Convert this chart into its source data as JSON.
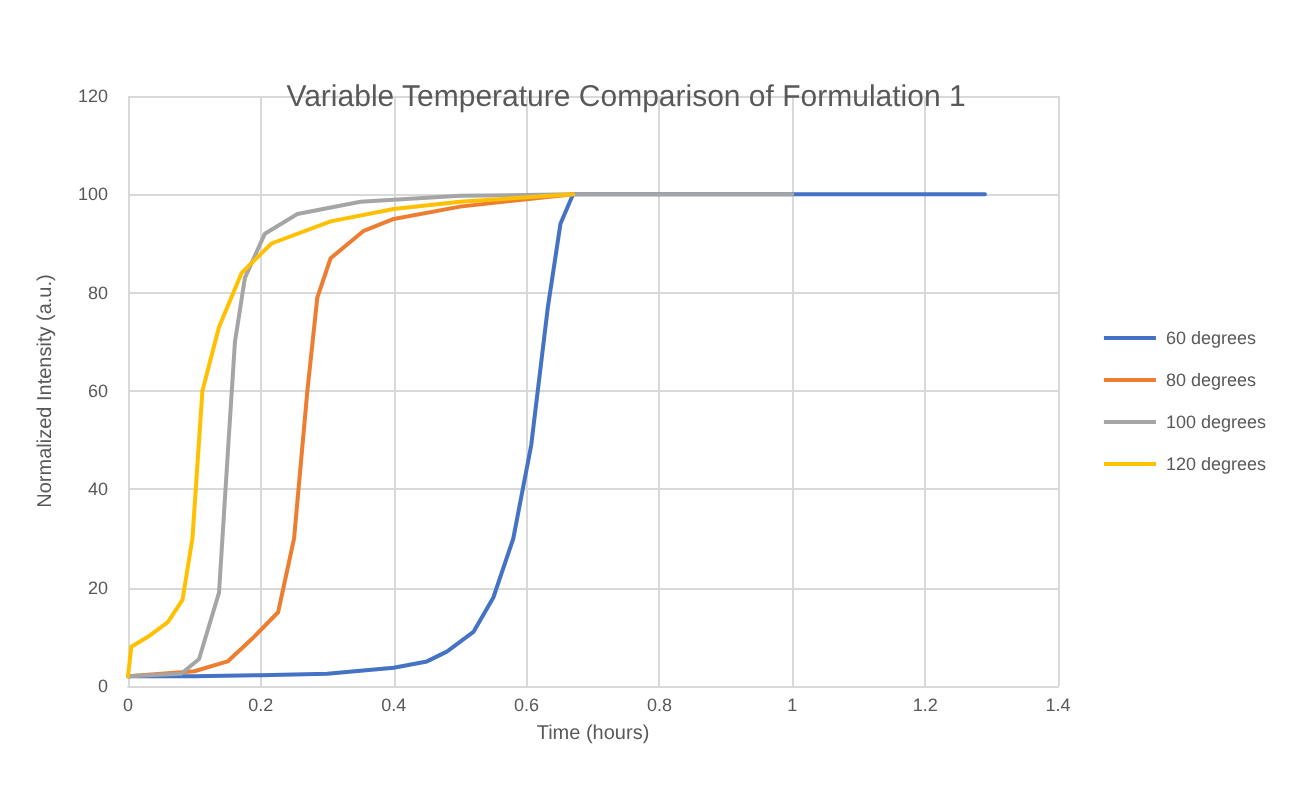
{
  "chart_data": {
    "type": "line",
    "title": "Variable Temperature Comparison of Formulation 1",
    "xlabel": "Time (hours)",
    "ylabel": "Normalized Intensity (a.u.)",
    "xlim": [
      0,
      1.4
    ],
    "xticks": [
      0,
      0.2,
      0.4,
      0.6,
      0.8,
      1,
      1.2,
      1.4
    ],
    "ylim": [
      0,
      120
    ],
    "yticks": [
      0,
      20,
      40,
      60,
      80,
      100,
      120
    ],
    "grid": true,
    "legend": "right",
    "marker": "none",
    "line_style": "solid",
    "series": [
      {
        "name": "60 degrees",
        "color": "#4472c4",
        "x": [
          0,
          0.1,
          0.2,
          0.3,
          0.4,
          0.45,
          0.48,
          0.52,
          0.55,
          0.58,
          0.607,
          0.632,
          0.651,
          0.67,
          1,
          1.29
        ],
        "values": [
          2,
          2,
          2.2,
          2.5,
          3.7,
          5,
          7,
          11,
          18,
          30,
          49,
          77,
          94,
          100,
          100,
          100
        ]
      },
      {
        "name": "80 degrees",
        "color": "#ed7d31",
        "x": [
          0,
          0.1,
          0.15,
          0.186,
          0.226,
          0.25,
          0.27,
          0.285,
          0.305,
          0.354,
          0.4,
          0.5,
          0.6,
          0.67
        ],
        "values": [
          2,
          3,
          5,
          9.5,
          15,
          30,
          60,
          79,
          87,
          92.5,
          95,
          97.5,
          99,
          100
        ]
      },
      {
        "name": "100 degrees",
        "color": "#a5a5a5",
        "x": [
          0,
          0.08,
          0.107,
          0.137,
          0.151,
          0.161,
          0.176,
          0.206,
          0.255,
          0.35,
          0.5,
          0.67,
          1
        ],
        "values": [
          2,
          2.5,
          5.5,
          19,
          49,
          70,
          83,
          92,
          96,
          98.5,
          99.7,
          100,
          100
        ]
      },
      {
        "name": "120 degrees",
        "color": "#ffc000",
        "x": [
          0,
          0.005,
          0.03,
          0.06,
          0.082,
          0.097,
          0.112,
          0.137,
          0.171,
          0.216,
          0.305,
          0.4,
          0.5,
          0.67
        ],
        "values": [
          2,
          8,
          10,
          13,
          17.5,
          30,
          60,
          73,
          84,
          90,
          94.5,
          97,
          98.5,
          100
        ]
      }
    ]
  }
}
